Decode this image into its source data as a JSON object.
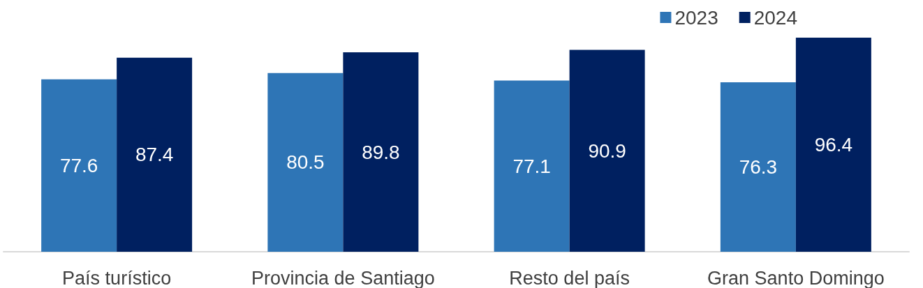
{
  "chart_data": {
    "type": "bar",
    "categories": [
      "País turístico",
      "Provincia de Santiago",
      "Resto del país",
      "Gran Santo Domingo"
    ],
    "series": [
      {
        "name": "2023",
        "color": "#2e75b6",
        "values": [
          77.6,
          80.5,
          77.1,
          76.3
        ]
      },
      {
        "name": "2024",
        "color": "#002060",
        "values": [
          87.4,
          89.8,
          90.9,
          96.4
        ]
      }
    ],
    "data_labels": true,
    "legend": "top right",
    "grid": false
  }
}
